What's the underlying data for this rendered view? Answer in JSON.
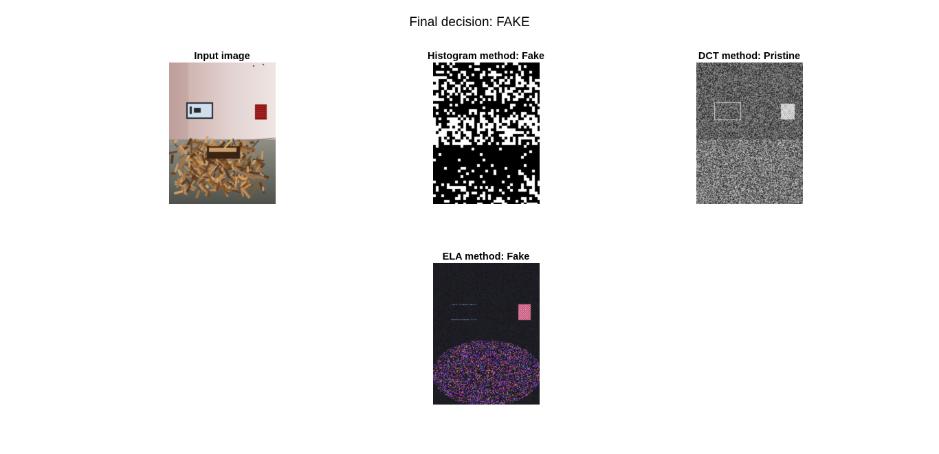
{
  "figure": {
    "suptitle": "Final decision: FAKE",
    "panels": [
      {
        "title": "Input image",
        "kind": "photo"
      },
      {
        "title": "Histogram method: Fake",
        "kind": "binary-mask"
      },
      {
        "title": "DCT method: Pristine",
        "kind": "dct-noise"
      },
      {
        "title": "ELA method: Fake",
        "kind": "ela-map"
      }
    ]
  }
}
